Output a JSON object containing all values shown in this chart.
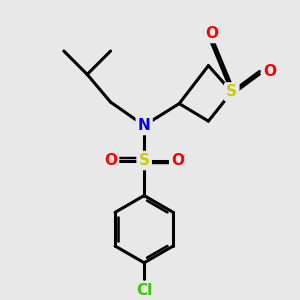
{
  "bg_color": "#e8e8e8",
  "bond_color": "#000000",
  "bond_width": 2.2,
  "atom_colors": {
    "S_sul": "#cccc00",
    "S_ring": "#cccc00",
    "N": "#0000ff",
    "O": "#ff0000",
    "Cl": "#33cc00",
    "C": "#000000"
  },
  "font_size_atom": 11
}
